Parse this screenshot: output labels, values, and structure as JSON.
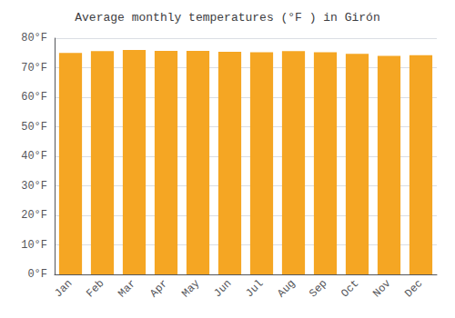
{
  "chart_data": {
    "type": "bar",
    "title": "Average monthly temperatures (°F ) in Girón",
    "categories": [
      "Jan",
      "Feb",
      "Mar",
      "Apr",
      "May",
      "Jun",
      "Jul",
      "Aug",
      "Sep",
      "Oct",
      "Nov",
      "Dec"
    ],
    "values": [
      75.0,
      75.6,
      76.0,
      75.7,
      75.7,
      75.4,
      75.2,
      75.6,
      75.2,
      74.7,
      74.0,
      74.2
    ],
    "color": "#F5A623",
    "ylim": [
      0,
      80
    ],
    "yticks": [
      {
        "value": 0,
        "label": "0°F"
      },
      {
        "value": 10,
        "label": "10°F"
      },
      {
        "value": 20,
        "label": "20°F"
      },
      {
        "value": 30,
        "label": "30°F"
      },
      {
        "value": 40,
        "label": "40°F"
      },
      {
        "value": 50,
        "label": "50°F"
      },
      {
        "value": 60,
        "label": "60°F"
      },
      {
        "value": 70,
        "label": "70°F"
      },
      {
        "value": 80,
        "label": "80°F"
      }
    ],
    "grid": true
  }
}
